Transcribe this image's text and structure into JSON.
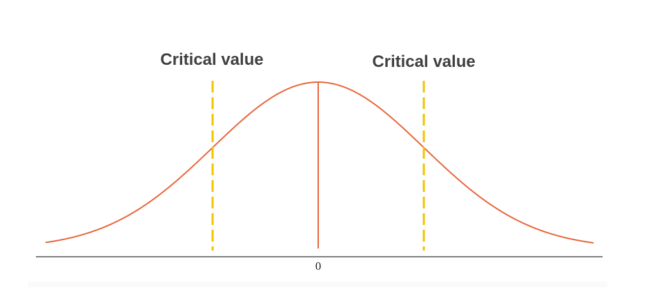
{
  "diagram": {
    "left_label": "Critical value",
    "right_label": "Critical value",
    "center_label": "0"
  },
  "colors": {
    "curve": "#e8663a",
    "critical_line": "#f2c200",
    "axis": "#555555",
    "label": "#404040"
  }
}
